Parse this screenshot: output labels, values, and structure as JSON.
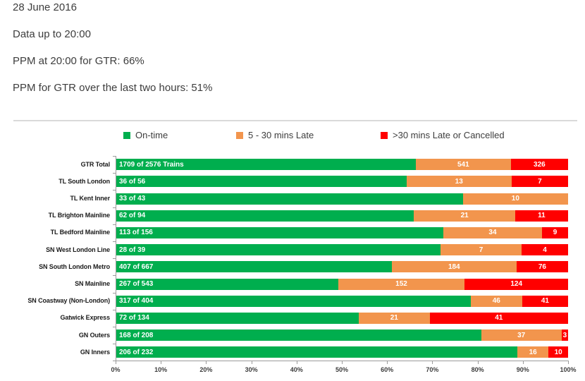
{
  "header": {
    "date": "28 June 2016",
    "data_up_to": "Data up to 20:00",
    "ppm_now": "PPM at 20:00 for GTR: 66%",
    "ppm_last_two_hours": "PPM for GTR over the last two hours: 51%"
  },
  "colors": {
    "on_time": "#00ae4e",
    "late": "#f2954d",
    "very_late": "#ff0000",
    "axis": "#9b9b9b",
    "header_text": "#3d3d3d",
    "divider": "#d9d9d9"
  },
  "chart_data": {
    "type": "bar",
    "orientation": "horizontal",
    "stacking": "100%",
    "legend_position": "top",
    "grid": false,
    "xlim": [
      0,
      100
    ],
    "x_ticks": [
      "0%",
      "10%",
      "20%",
      "30%",
      "40%",
      "50%",
      "60%",
      "70%",
      "80%",
      "90%",
      "100%"
    ],
    "legend": [
      {
        "label": "On-time",
        "color": "#00ae4e"
      },
      {
        "label": "5 - 30 mins Late",
        "color": "#f2954d"
      },
      {
        "label": ">30 mins Late or Cancelled",
        "color": "#ff0000"
      }
    ],
    "series_names": [
      "On-time",
      "5 - 30 mins Late",
      ">30 mins Late or Cancelled"
    ],
    "rows": [
      {
        "category": "GTR Total",
        "on_time": 1709,
        "late": 541,
        "very_late": 326,
        "total": 2576,
        "on_time_label": "1709 of 2576 Trains"
      },
      {
        "category": "TL South London",
        "on_time": 36,
        "late": 13,
        "very_late": 7,
        "total": 56,
        "on_time_label": "36 of 56"
      },
      {
        "category": "TL Kent Inner",
        "on_time": 33,
        "late": 10,
        "very_late": 0,
        "total": 43,
        "on_time_label": "33 of 43"
      },
      {
        "category": "TL Brighton Mainline",
        "on_time": 62,
        "late": 21,
        "very_late": 11,
        "total": 94,
        "on_time_label": "62 of 94"
      },
      {
        "category": "TL Bedford Mainline",
        "on_time": 113,
        "late": 34,
        "very_late": 9,
        "total": 156,
        "on_time_label": "113 of 156"
      },
      {
        "category": "SN West London Line",
        "on_time": 28,
        "late": 7,
        "very_late": 4,
        "total": 39,
        "on_time_label": "28 of 39"
      },
      {
        "category": "SN South London Metro",
        "on_time": 407,
        "late": 184,
        "very_late": 76,
        "total": 667,
        "on_time_label": "407 of 667"
      },
      {
        "category": "SN Mainline",
        "on_time": 267,
        "late": 152,
        "very_late": 124,
        "total": 543,
        "on_time_label": "267 of 543"
      },
      {
        "category": "SN Coastway (Non-London)",
        "on_time": 317,
        "late": 46,
        "very_late": 41,
        "total": 404,
        "on_time_label": "317 of 404"
      },
      {
        "category": "Gatwick Express",
        "on_time": 72,
        "late": 21,
        "very_late": 41,
        "total": 134,
        "on_time_label": "72 of 134"
      },
      {
        "category": "GN Outers",
        "on_time": 168,
        "late": 37,
        "very_late": 3,
        "total": 208,
        "on_time_label": "168 of 208"
      },
      {
        "category": "GN Inners",
        "on_time": 206,
        "late": 16,
        "very_late": 10,
        "total": 232,
        "on_time_label": "206 of 232"
      }
    ]
  }
}
